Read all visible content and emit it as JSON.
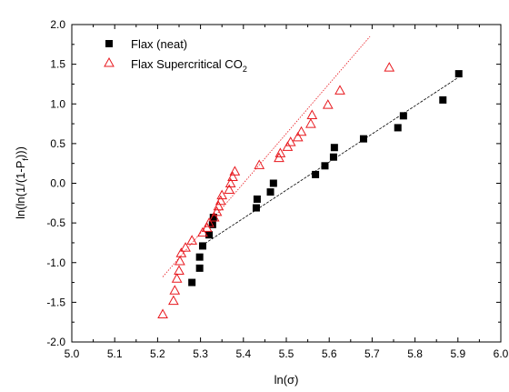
{
  "chart_data": {
    "type": "scatter",
    "xlabel": "ln(σ)",
    "ylabel": "ln(ln(1/(1-Pf)))",
    "xlim": [
      5.0,
      6.0
    ],
    "ylim": [
      -2.0,
      2.0
    ],
    "x_ticks": [
      "5.0",
      "5.1",
      "5.2",
      "5.3",
      "5.4",
      "5.5",
      "5.6",
      "5.7",
      "5.8",
      "5.9",
      "6.0"
    ],
    "y_ticks": [
      "-2.0",
      "-1.5",
      "-1.0",
      "-0.5",
      "0.0",
      "0.5",
      "1.0",
      "1.5",
      "2.0"
    ],
    "grid": false,
    "legend_position": "top-left",
    "series": [
      {
        "name": "Flax (neat)",
        "marker": "filled-square",
        "color": "#000000",
        "points": [
          [
            5.28,
            -1.25
          ],
          [
            5.298,
            -1.07
          ],
          [
            5.298,
            -0.93
          ],
          [
            5.305,
            -0.79
          ],
          [
            5.32,
            -0.65
          ],
          [
            5.328,
            -0.52
          ],
          [
            5.33,
            -0.43
          ],
          [
            5.43,
            -0.31
          ],
          [
            5.432,
            -0.2
          ],
          [
            5.463,
            -0.11
          ],
          [
            5.47,
            0.0
          ],
          [
            5.568,
            0.11
          ],
          [
            5.59,
            0.22
          ],
          [
            5.61,
            0.33
          ],
          [
            5.612,
            0.45
          ],
          [
            5.68,
            0.56
          ],
          [
            5.76,
            0.7
          ],
          [
            5.773,
            0.85
          ],
          [
            5.865,
            1.05
          ],
          [
            5.902,
            1.38
          ]
        ],
        "fit": [
          [
            5.31,
            -0.76
          ],
          [
            5.9,
            1.33
          ]
        ]
      },
      {
        "name": "Flax Supercritical CO2",
        "marker": "open-triangle",
        "color": "#e8191f",
        "points": [
          [
            5.212,
            -1.65
          ],
          [
            5.237,
            -1.48
          ],
          [
            5.24,
            -1.35
          ],
          [
            5.245,
            -1.2
          ],
          [
            5.25,
            -1.1
          ],
          [
            5.252,
            -0.98
          ],
          [
            5.255,
            -0.88
          ],
          [
            5.265,
            -0.81
          ],
          [
            5.28,
            -0.72
          ],
          [
            5.305,
            -0.62
          ],
          [
            5.315,
            -0.56
          ],
          [
            5.32,
            -0.5
          ],
          [
            5.332,
            -0.43
          ],
          [
            5.338,
            -0.36
          ],
          [
            5.342,
            -0.29
          ],
          [
            5.347,
            -0.22
          ],
          [
            5.35,
            -0.15
          ],
          [
            5.367,
            -0.08
          ],
          [
            5.37,
            0.0
          ],
          [
            5.375,
            0.08
          ],
          [
            5.38,
            0.15
          ],
          [
            5.437,
            0.23
          ],
          [
            5.483,
            0.32
          ],
          [
            5.486,
            0.38
          ],
          [
            5.503,
            0.46
          ],
          [
            5.51,
            0.52
          ],
          [
            5.527,
            0.58
          ],
          [
            5.535,
            0.65
          ],
          [
            5.557,
            0.75
          ],
          [
            5.56,
            0.86
          ],
          [
            5.597,
            0.99
          ],
          [
            5.625,
            1.17
          ],
          [
            5.74,
            1.46
          ]
        ],
        "fit": [
          [
            5.212,
            -1.18
          ],
          [
            5.695,
            1.85
          ]
        ]
      }
    ]
  }
}
